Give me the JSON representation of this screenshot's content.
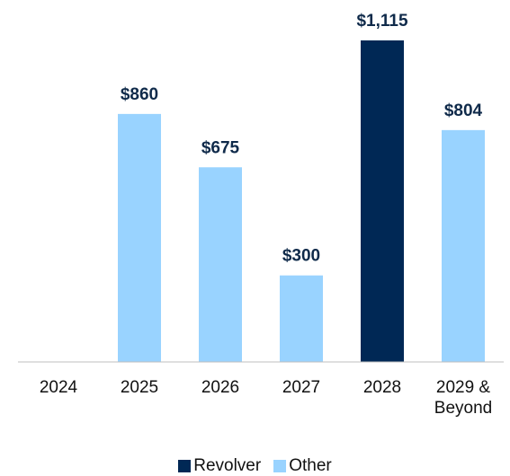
{
  "chart_data": {
    "type": "bar",
    "stacked": true,
    "categories": [
      "2024",
      "2025",
      "2026",
      "2027",
      "2028",
      "2029 & Beyond"
    ],
    "series": [
      {
        "name": "Revolver",
        "color": "#002855",
        "values": [
          null,
          null,
          null,
          null,
          1115,
          null
        ],
        "value_labels": [
          null,
          null,
          null,
          null,
          "$1,115",
          null
        ]
      },
      {
        "name": "Other",
        "color": "#99d3ff",
        "values": [
          null,
          860,
          675,
          300,
          null,
          804
        ],
        "value_labels": [
          null,
          "$860",
          "$675",
          "$300",
          null,
          "$804"
        ]
      }
    ],
    "legend": "bottom"
  }
}
